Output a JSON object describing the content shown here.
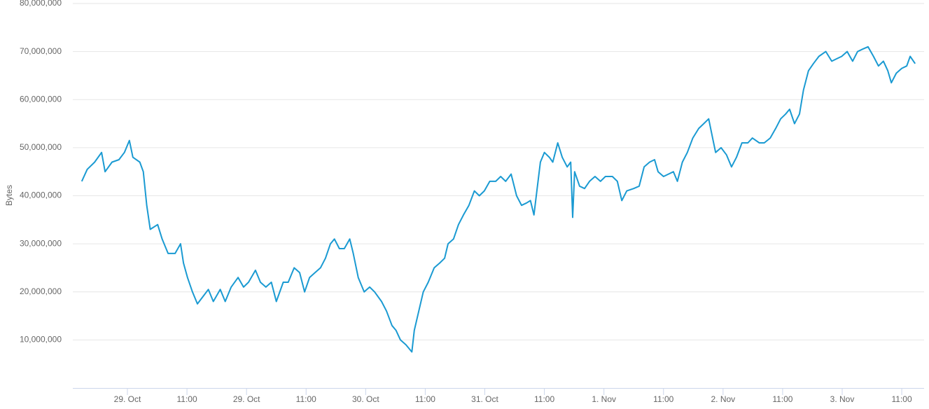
{
  "chart_data": {
    "type": "line",
    "y_label": "Bytes",
    "color": "#1a9ad2",
    "grid": true,
    "x": [
      2.8,
      3.9,
      5.4,
      6.8,
      7.5,
      8.9,
      10.3,
      11.4,
      12.4,
      13.1,
      14.5,
      15.2,
      15.9,
      16.6,
      18.1,
      19.0,
      20.2,
      21.6,
      22.7,
      23.3,
      24.1,
      25.1,
      26.1,
      27.2,
      28.3,
      29.3,
      30.7,
      31.7,
      32.9,
      34.3,
      35.4,
      36.4,
      37.8,
      38.8,
      39.9,
      41.0,
      42.0,
      43.4,
      44.4,
      45.6,
      46.7,
      47.7,
      48.7,
      49.8,
      50.9,
      51.9,
      52.9,
      53.7,
      54.7,
      55.7,
      56.8,
      57.5,
      58.5,
      59.7,
      60.8,
      61.8,
      63.2,
      64.2,
      65.3,
      66.1,
      67.0,
      68.1,
      69.3,
      69.8,
      70.7,
      71.6,
      72.6,
      73.8,
      74.9,
      75.9,
      76.6,
      77.7,
      78.7,
      79.7,
      80.8,
      81.9,
      82.9,
      83.9,
      85.0,
      86.2,
      87.2,
      88.2,
      89.3,
      90.4,
      91.4,
      92.4,
      93.2,
      93.9,
      94.6,
      95.2,
      96.0,
      97.0,
      97.7,
      98.7,
      99.6,
      100.6,
      101.3,
      101.7,
      102.1,
      103.1,
      104.1,
      105.1,
      106.2,
      107.3,
      108.3,
      109.7,
      110.7,
      111.6,
      112.6,
      114.0,
      115.1,
      116.1,
      117.2,
      118.2,
      118.9,
      120.0,
      121.0,
      122.0,
      122.8,
      123.8,
      124.8,
      125.9,
      127.1,
      128.1,
      129.1,
      129.9,
      130.5,
      131.6,
      132.7,
      133.7,
      134.7,
      135.8,
      137.0,
      137.9,
      139.3,
      140.3,
      141.5,
      142.6,
      143.6,
      144.6,
      145.4,
      146.4,
      147.4,
      148.2,
      149.2,
      150.2,
      151.3,
      152.7,
      153.9,
      154.9,
      155.9,
      157.0,
      158.1,
      159.1,
      160.1,
      161.2,
      162.3,
      163.3,
      164.3,
      165.2,
      165.9,
      166.9,
      168.0,
      169.0,
      169.7,
      170.7
    ],
    "values": [
      43000000,
      45500000,
      47000000,
      49000000,
      45000000,
      47000000,
      47500000,
      49000000,
      51500000,
      48000000,
      47000000,
      45000000,
      38000000,
      33000000,
      34000000,
      31000000,
      28000000,
      28000000,
      30000000,
      26000000,
      23000000,
      20000000,
      17500000,
      19000000,
      20500000,
      18000000,
      20500000,
      18000000,
      21000000,
      23000000,
      21000000,
      22000000,
      24500000,
      22000000,
      21000000,
      22000000,
      18000000,
      22000000,
      22000000,
      25000000,
      24000000,
      20000000,
      23000000,
      24000000,
      25000000,
      27000000,
      30000000,
      31000000,
      29000000,
      29000000,
      31000000,
      28000000,
      23000000,
      20000000,
      21000000,
      20000000,
      18000000,
      16000000,
      13000000,
      12000000,
      10000000,
      9000000,
      7500000,
      12000000,
      16000000,
      20000000,
      22000000,
      25000000,
      26000000,
      27000000,
      30000000,
      31000000,
      34000000,
      36000000,
      38000000,
      41000000,
      40000000,
      41000000,
      43000000,
      43000000,
      44000000,
      43000000,
      44500000,
      40000000,
      38000000,
      38500000,
      39000000,
      36000000,
      42000000,
      47000000,
      49000000,
      48000000,
      47000000,
      51000000,
      48000000,
      46000000,
      47000000,
      35500000,
      45000000,
      42000000,
      41500000,
      43000000,
      44000000,
      43000000,
      44000000,
      44000000,
      43000000,
      39000000,
      41000000,
      41500000,
      42000000,
      46000000,
      47000000,
      47500000,
      45000000,
      44000000,
      44500000,
      45000000,
      43000000,
      47000000,
      49000000,
      52000000,
      54000000,
      55000000,
      56000000,
      52000000,
      49000000,
      50000000,
      48500000,
      46000000,
      48000000,
      51000000,
      51000000,
      52000000,
      51000000,
      51000000,
      52000000,
      54000000,
      56000000,
      57000000,
      58000000,
      55000000,
      57000000,
      62000000,
      66000000,
      67500000,
      69000000,
      70000000,
      68000000,
      68500000,
      69000000,
      70000000,
      68000000,
      70000000,
      70500000,
      71000000,
      69000000,
      67000000,
      68000000,
      66000000,
      63500000,
      65500000,
      66500000,
      67000000,
      69000000,
      67500000
    ],
    "xlim": [
      1,
      172.5
    ],
    "xticks": [
      {
        "value": 12,
        "label": "29. Oct"
      },
      {
        "value": 24,
        "label": "11:00"
      },
      {
        "value": 36,
        "label": "29. Oct"
      },
      {
        "value": 48,
        "label": "11:00"
      },
      {
        "value": 60,
        "label": "30. Oct"
      },
      {
        "value": 72,
        "label": "11:00"
      },
      {
        "value": 84,
        "label": "31. Oct"
      },
      {
        "value": 96,
        "label": "11:00"
      },
      {
        "value": 108,
        "label": "1. Nov"
      },
      {
        "value": 120,
        "label": "11:00"
      },
      {
        "value": 132,
        "label": "2. Nov"
      },
      {
        "value": 144,
        "label": "11:00"
      },
      {
        "value": 156,
        "label": "3. Nov"
      },
      {
        "value": 168,
        "label": "11:00"
      }
    ],
    "ylim": [
      0,
      80000000
    ],
    "yticks": [
      {
        "value": 10000000,
        "label": "10,000,000"
      },
      {
        "value": 20000000,
        "label": "20,000,000"
      },
      {
        "value": 30000000,
        "label": "30,000,000"
      },
      {
        "value": 40000000,
        "label": "40,000,000"
      },
      {
        "value": 50000000,
        "label": "50,000,000"
      },
      {
        "value": 60000000,
        "label": "60,000,000"
      },
      {
        "value": 70000000,
        "label": "70,000,000"
      },
      {
        "value": 80000000,
        "label": "80,000,000"
      }
    ]
  }
}
